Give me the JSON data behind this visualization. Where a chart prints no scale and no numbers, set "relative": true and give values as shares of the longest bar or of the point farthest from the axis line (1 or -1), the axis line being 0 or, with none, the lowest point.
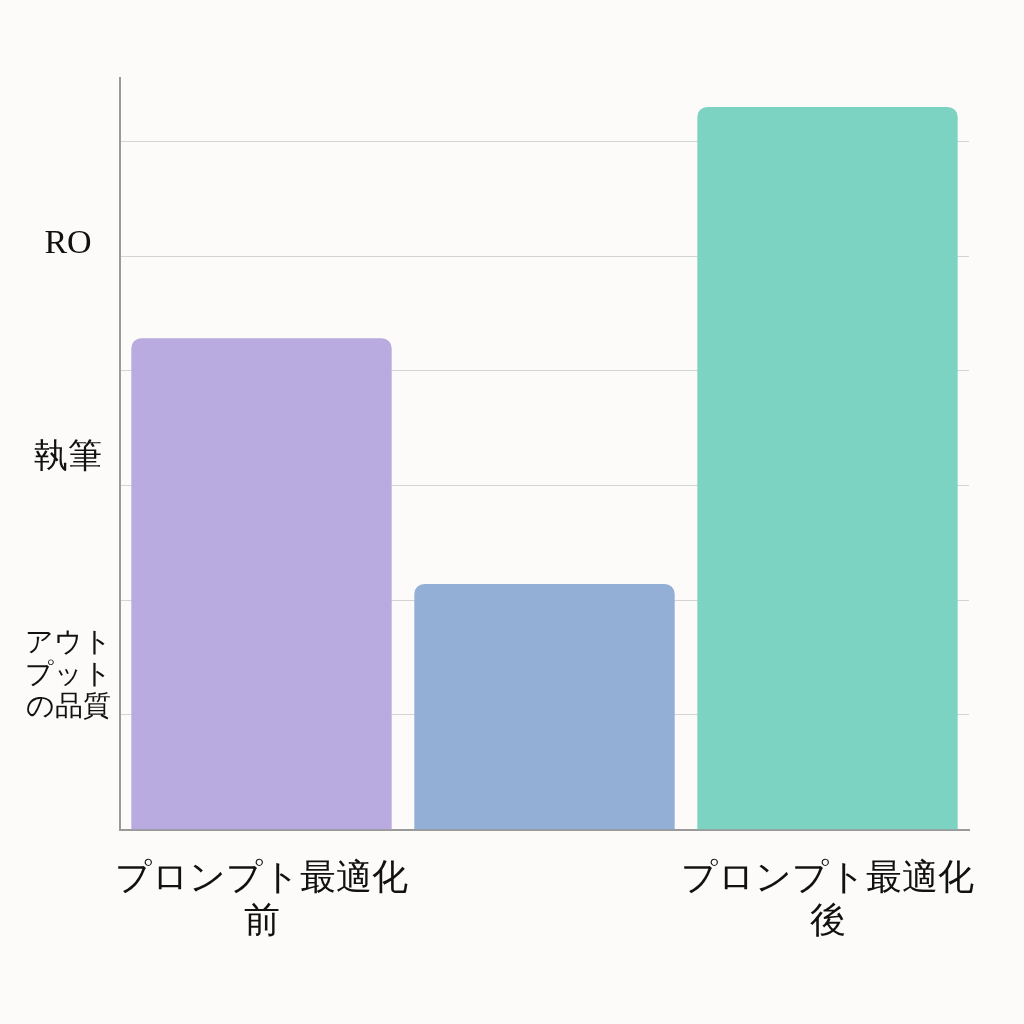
{
  "chart_data": {
    "type": "bar",
    "relative": true,
    "categories": [
      "プロンプト最適化前",
      null,
      "プロンプト最適化後"
    ],
    "values": [
      0.68,
      0.34,
      1
    ],
    "colors": [
      "#b9aadf",
      "#93afd6",
      "#7dd3c1"
    ],
    "annotations": [
      "RO",
      "執筆",
      "アウトプットの品質"
    ],
    "grid": "y"
  }
}
